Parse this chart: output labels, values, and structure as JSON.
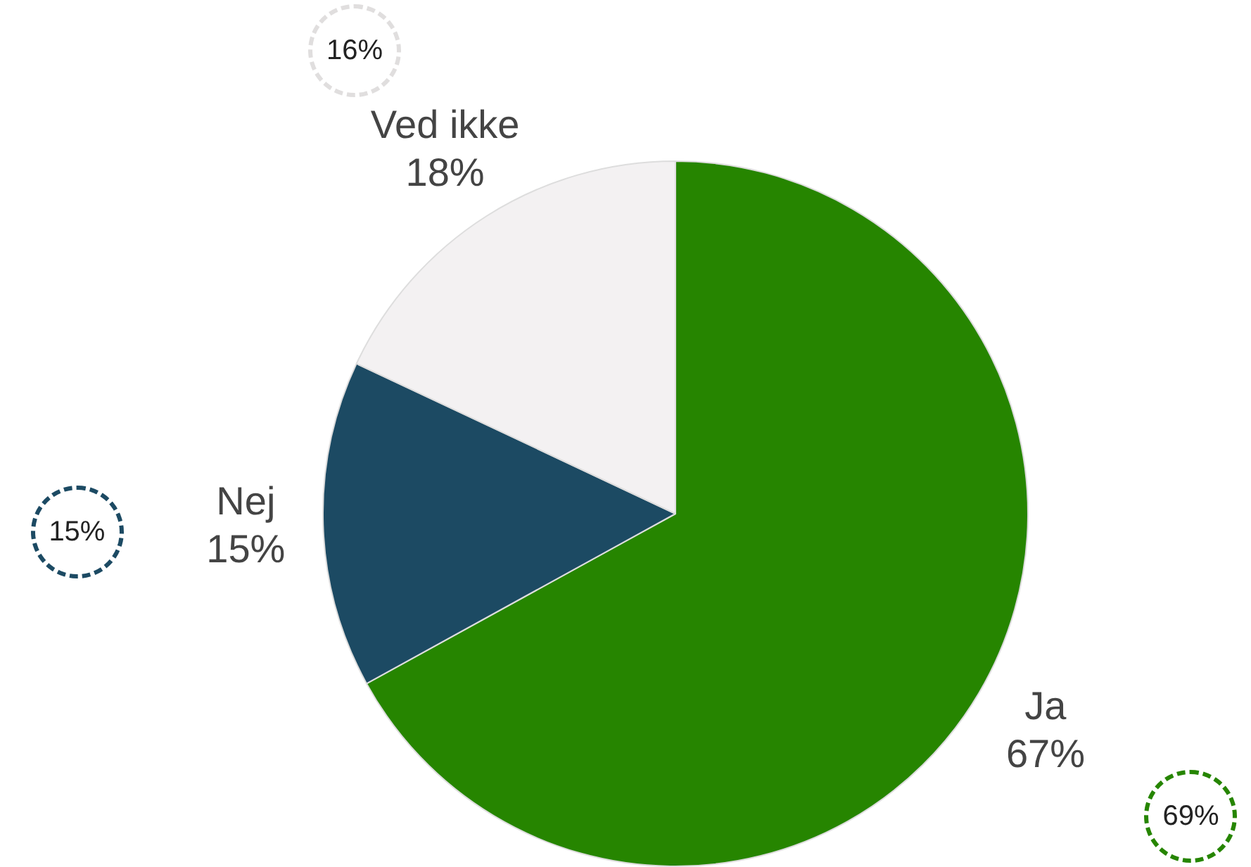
{
  "chart_data": {
    "type": "pie",
    "categories": [
      "Ja",
      "Nej",
      "Ved ikke"
    ],
    "values": [
      67,
      15,
      18
    ],
    "value_labels": [
      "67%",
      "15%",
      "18%"
    ],
    "colors": [
      "#268500",
      "#1c4a63",
      "#f3f1f2"
    ],
    "annotations": [
      "69%",
      "15%",
      "16%"
    ]
  }
}
